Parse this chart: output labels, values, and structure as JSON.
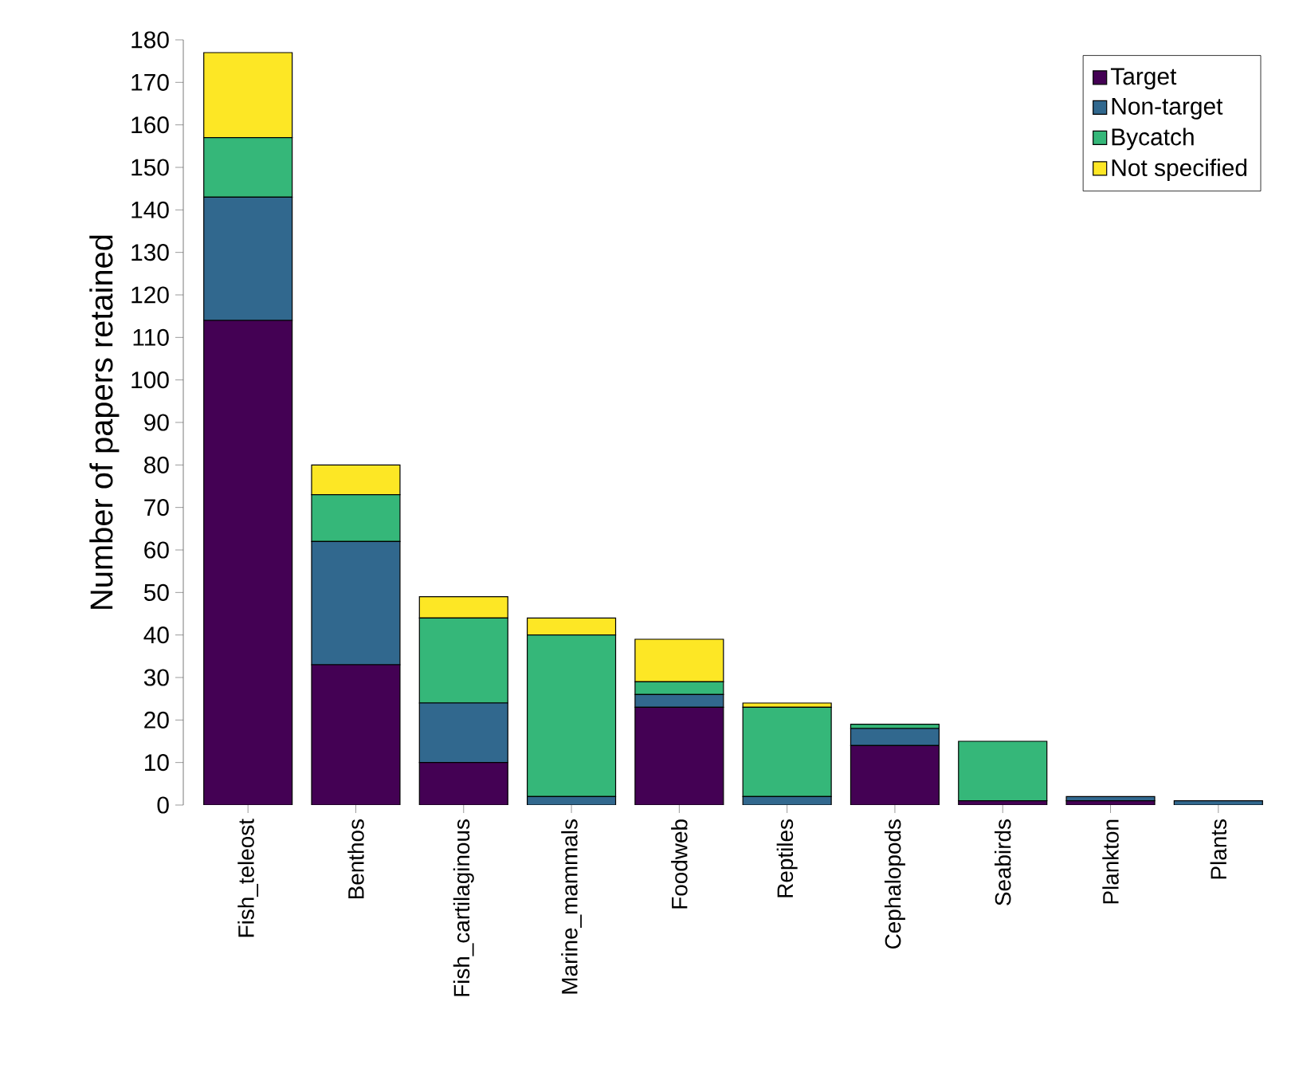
{
  "chart_data": {
    "type": "bar",
    "stacked": true,
    "ylabel": "Number of papers retained",
    "categories": [
      "Fish_teleost",
      "Benthos",
      "Fish_cartilaginous",
      "Marine_mammals",
      "Foodweb",
      "Reptiles",
      "Cephalopods",
      "Seabirds",
      "Plankton",
      "Plants"
    ],
    "series": [
      {
        "name": "Target",
        "color": "#440154",
        "values": [
          114,
          33,
          10,
          0,
          23,
          0,
          14,
          1,
          1,
          0
        ]
      },
      {
        "name": "Non-target",
        "color": "#31688e",
        "values": [
          29,
          29,
          14,
          2,
          3,
          2,
          4,
          0,
          1,
          1
        ]
      },
      {
        "name": "Bycatch",
        "color": "#35b779",
        "values": [
          14,
          11,
          20,
          38,
          3,
          21,
          1,
          14,
          0,
          0
        ]
      },
      {
        "name": "Not specified",
        "color": "#fde725",
        "values": [
          20,
          7,
          5,
          4,
          10,
          1,
          0,
          0,
          0,
          0
        ]
      }
    ],
    "ylim": [
      0,
      180
    ],
    "yticks": [
      0,
      10,
      20,
      30,
      40,
      50,
      60,
      70,
      80,
      90,
      100,
      110,
      120,
      130,
      140,
      150,
      160,
      170,
      180
    ],
    "legend": "top right",
    "grid": false
  }
}
